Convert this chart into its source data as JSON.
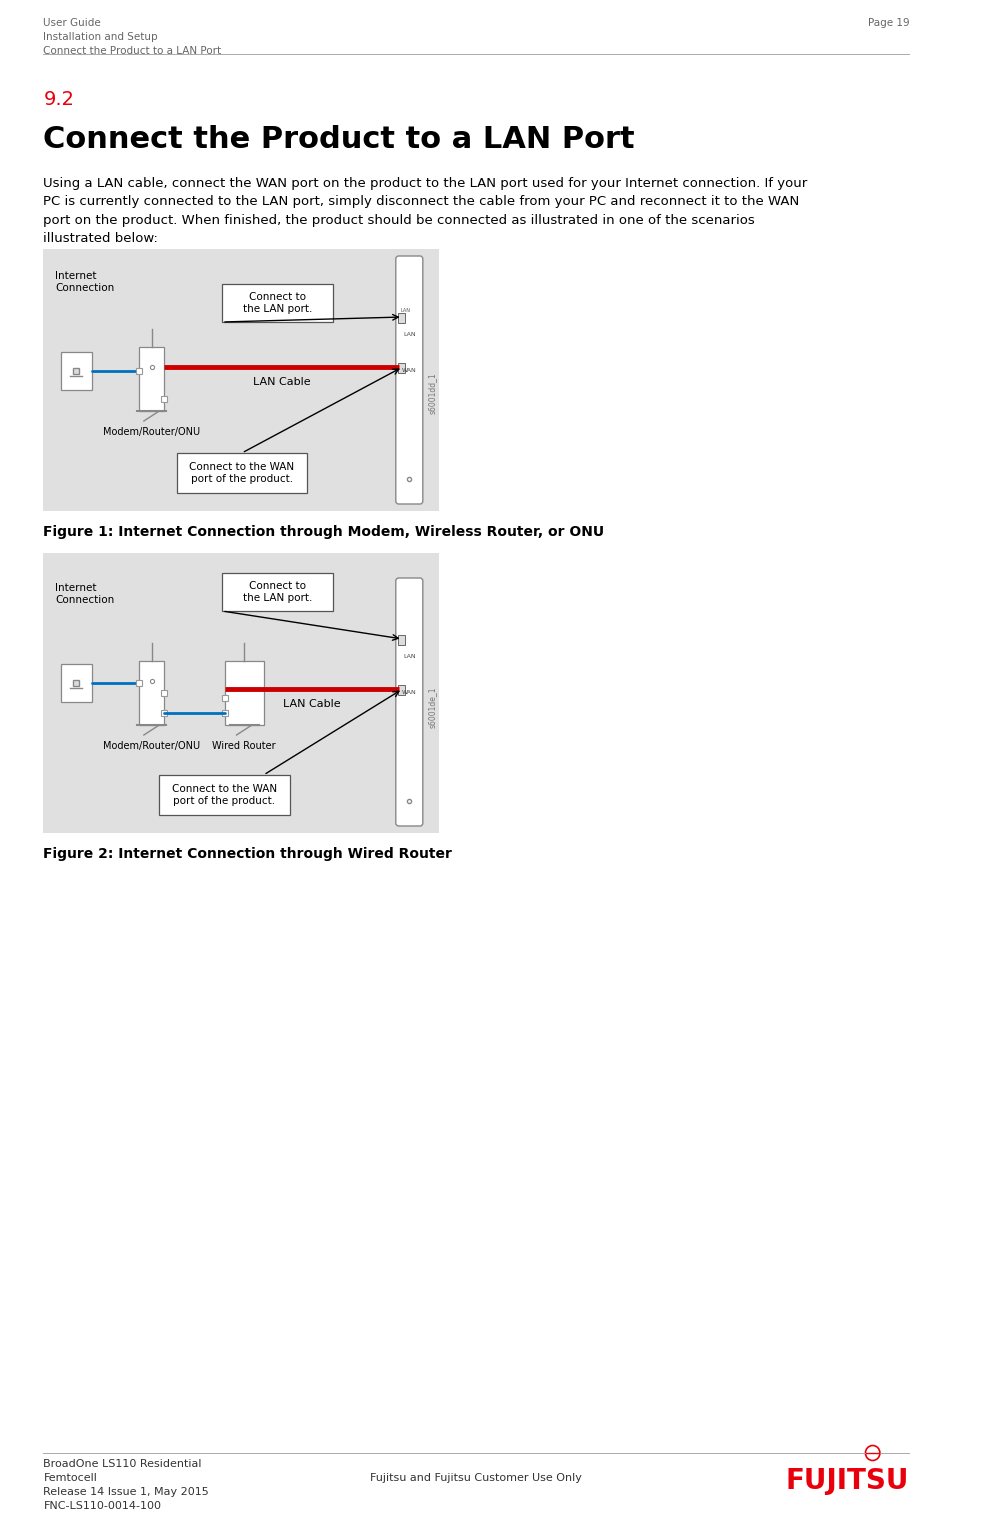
{
  "page_width": 9.87,
  "page_height": 15.23,
  "bg_color": "#ffffff",
  "header_left_line1": "User Guide",
  "header_left_line2": "Installation and Setup",
  "header_left_line3": "Connect the Product to a LAN Port",
  "header_right": "Page 19",
  "section_number": "9.2",
  "section_title": "Connect the Product to a LAN Port",
  "body_text": "Using a LAN cable, connect the WAN port on the product to the LAN port used for your Internet connection. If your\nPC is currently connected to the LAN port, simply disconnect the cable from your PC and reconnect it to the WAN\nport on the product. When finished, the product should be connected as illustrated in one of the scenarios\nillustrated below:",
  "fig1_caption": "Figure 1: Internet Connection through Modem, Wireless Router, or ONU",
  "fig2_caption": "Figure 2: Internet Connection through Wired Router",
  "footer_left_line1": "BroadOne LS110 Residential",
  "footer_left_line2": "Femtocell",
  "footer_left_line3": "Release 14 Issue 1, May 2015",
  "footer_left_line4": "FNC-LS110-0014-100",
  "footer_center": "Fujitsu and Fujitsu Customer Use Only",
  "red_color": "#e8000d",
  "gray_bg": "#e0e0e0",
  "blue_color": "#0070c0",
  "dark_text": "#000000",
  "header_font_size": 7.5,
  "section_num_font_size": 14,
  "section_title_font_size": 22,
  "body_font_size": 9.5,
  "caption_font_size": 10,
  "footer_font_size": 8
}
